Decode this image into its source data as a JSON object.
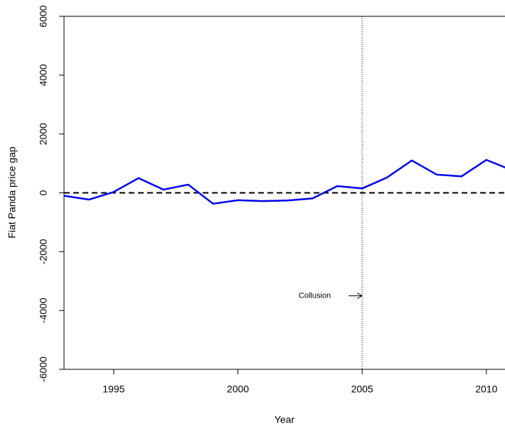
{
  "chart_data": {
    "type": "line",
    "x_label": "Year",
    "y_label": "Fiat Panda price gap",
    "x": [
      1993,
      1994,
      1995,
      1996,
      1997,
      1998,
      1999,
      2000,
      2001,
      2002,
      2003,
      2004,
      2005,
      2006,
      2007,
      2008,
      2009,
      2010,
      2011
    ],
    "series": [
      {
        "color": "#0000ee",
        "values": [
          -100,
          -230,
          30,
          500,
          110,
          280,
          -370,
          -250,
          -280,
          -260,
          -190,
          230,
          150,
          520,
          1100,
          620,
          560,
          1120,
          780
        ]
      }
    ],
    "xlim": [
      1993,
      2010.75
    ],
    "xticks": [
      1995,
      2000,
      2005,
      2010
    ],
    "ylim": [
      -6000,
      6000
    ],
    "yticks": [
      -6000,
      -4000,
      -2000,
      0,
      2000,
      4000,
      6000
    ],
    "reference_hline": 0,
    "reference_vline": 2005,
    "annotation": {
      "text": "Collusion",
      "x": 2005,
      "y": -3500
    }
  }
}
